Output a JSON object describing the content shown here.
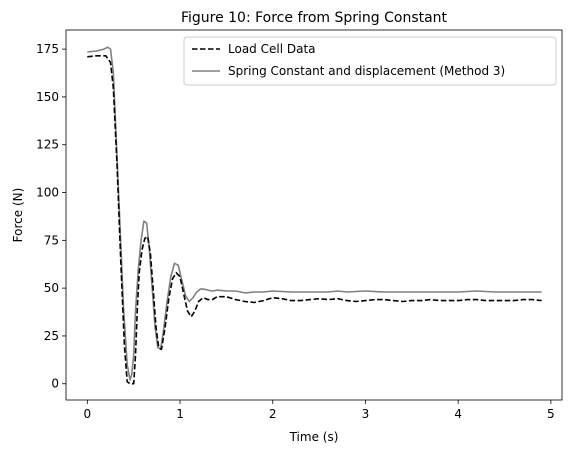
{
  "chart_data": {
    "type": "line",
    "title": "Figure 10: Force from Spring Constant",
    "xlabel": "Time (s)",
    "ylabel": "Force (N)",
    "xlim": [
      -0.23,
      5.12
    ],
    "ylim": [
      -8.5,
      185
    ],
    "xticks": [
      0,
      1,
      2,
      3,
      4,
      5
    ],
    "yticks": [
      0,
      25,
      50,
      75,
      100,
      125,
      150,
      175
    ],
    "grid": false,
    "legend_position": "top-right",
    "series": [
      {
        "name": "Load Cell Data",
        "color": "#000000",
        "style": "dashed",
        "x": [
          0.0,
          0.1,
          0.2,
          0.25,
          0.28,
          0.32,
          0.36,
          0.4,
          0.43,
          0.46,
          0.5,
          0.52,
          0.54,
          0.56,
          0.59,
          0.62,
          0.65,
          0.68,
          0.71,
          0.74,
          0.77,
          0.8,
          0.84,
          0.88,
          0.92,
          0.96,
          1.0,
          1.04,
          1.08,
          1.12,
          1.16,
          1.2,
          1.25,
          1.3,
          1.35,
          1.4,
          1.5,
          1.6,
          1.7,
          1.8,
          1.9,
          2.0,
          2.1,
          2.2,
          2.3,
          2.4,
          2.5,
          2.6,
          2.7,
          2.8,
          2.9,
          3.0,
          3.1,
          3.2,
          3.3,
          3.4,
          3.5,
          3.6,
          3.7,
          3.8,
          3.9,
          4.0,
          4.1,
          4.2,
          4.3,
          4.4,
          4.5,
          4.6,
          4.7,
          4.8,
          4.9
        ],
        "y": [
          171,
          171.5,
          171.5,
          168,
          155,
          115,
          65,
          20,
          1,
          0,
          0,
          15,
          40,
          58,
          70,
          76,
          77,
          68,
          50,
          30,
          19,
          18,
          30,
          45,
          55,
          58,
          56,
          47,
          38,
          35,
          38,
          43,
          45,
          44,
          44,
          45.5,
          45.5,
          44,
          43,
          42.5,
          43.5,
          45,
          44.5,
          43.5,
          43.5,
          44,
          44.5,
          44,
          44.5,
          43.5,
          43,
          43.5,
          44,
          44,
          43.5,
          43,
          43.5,
          43.5,
          44,
          43.5,
          43.5,
          43.5,
          44,
          44,
          43.5,
          43.5,
          43.5,
          43.5,
          44,
          44,
          43.5
        ]
      },
      {
        "name": "Spring Constant and displacement (Method 3)",
        "color": "#808080",
        "style": "solid",
        "x": [
          0.0,
          0.1,
          0.18,
          0.22,
          0.25,
          0.28,
          0.31,
          0.35,
          0.39,
          0.43,
          0.46,
          0.48,
          0.5,
          0.52,
          0.55,
          0.58,
          0.61,
          0.64,
          0.67,
          0.7,
          0.73,
          0.76,
          0.79,
          0.82,
          0.86,
          0.9,
          0.94,
          0.98,
          1.02,
          1.06,
          1.1,
          1.14,
          1.18,
          1.22,
          1.26,
          1.3,
          1.35,
          1.4,
          1.5,
          1.6,
          1.7,
          1.8,
          1.9,
          2.0,
          2.2,
          2.4,
          2.6,
          2.7,
          2.8,
          3.0,
          3.2,
          3.4,
          3.6,
          3.8,
          4.0,
          4.2,
          4.4,
          4.6,
          4.8,
          4.9
        ],
        "y": [
          173.5,
          174,
          175,
          176,
          175,
          163,
          130,
          85,
          40,
          10,
          2,
          5,
          15,
          38,
          60,
          75,
          85,
          84,
          70,
          50,
          30,
          19,
          18,
          27,
          43,
          56,
          63,
          62,
          54,
          46,
          43,
          45,
          48,
          49.5,
          49.5,
          49,
          48.5,
          49,
          48.5,
          48.5,
          47.5,
          48,
          48,
          48.5,
          48,
          48,
          48,
          48.5,
          48,
          48.5,
          48,
          48,
          48,
          48,
          48,
          48.5,
          48,
          48,
          48,
          48
        ]
      }
    ]
  }
}
